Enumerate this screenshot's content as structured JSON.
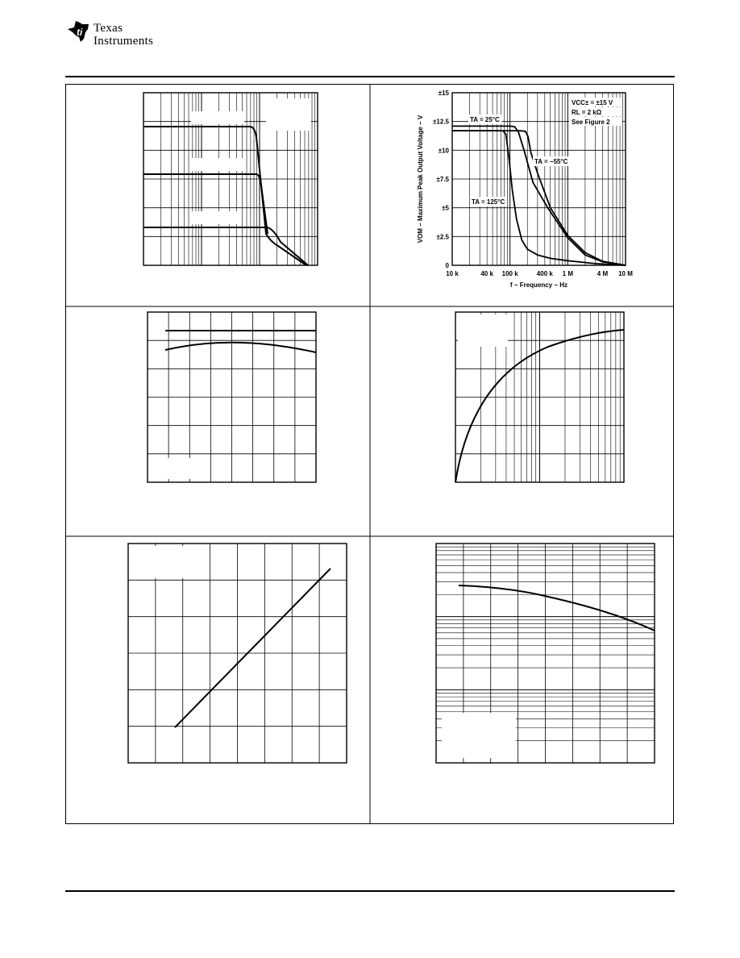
{
  "header": {
    "logo_text_line1": "Texas",
    "logo_text_line2": "Instruments"
  },
  "chart_data": [
    {
      "type": "line",
      "title": "",
      "xlabel": "f − Frequency − Hz",
      "ylabel": "VOM − Maximum Peak Output Voltage − V",
      "xscale": "log",
      "xlim": [
        10000,
        10000000
      ],
      "ylim": [
        0,
        15
      ],
      "grid": true,
      "xtick_labels": [
        "10 k",
        "40 k",
        "100 k",
        "400 k",
        "1 M",
        "4 M",
        "10 M"
      ],
      "xtick_values": [
        10000,
        40000,
        100000,
        400000,
        1000000,
        4000000,
        10000000
      ],
      "ytick_labels": [
        "0",
        "±2.5",
        "±5",
        "±7.5",
        "±10",
        "±12.5",
        "±15"
      ],
      "ytick_values": [
        0,
        2.5,
        5,
        7.5,
        10,
        12.5,
        15
      ],
      "conditions": [
        "VCC± = ±15 V",
        "RL = 2 kΩ",
        "See Figure 2"
      ],
      "series": [
        {
          "name": "TA = 25°C",
          "x": [
            10000,
            100000,
            120000,
            140000,
            175000,
            250000,
            450000,
            1000000,
            2000000,
            4000000,
            10000000
          ],
          "y": [
            12.1,
            12.1,
            12.05,
            11.6,
            10,
            7.2,
            5,
            2.4,
            0.9,
            0.3,
            0
          ]
        },
        {
          "name": "TA = −55°C",
          "x": [
            10000,
            150000,
            185000,
            205000,
            230000,
            300000,
            500000,
            1000000,
            2000000,
            4000000,
            10000000
          ],
          "y": [
            11.7,
            11.7,
            11.65,
            11.2,
            9.8,
            8,
            5,
            2.6,
            1.1,
            0.35,
            0
          ]
        },
        {
          "name": "TA = 125°C",
          "x": [
            10000,
            75000,
            85000,
            95000,
            110000,
            130000,
            160000,
            200000,
            300000,
            500000,
            1000000,
            3000000,
            10000000
          ],
          "y": [
            11.7,
            11.7,
            11.4,
            9.5,
            6.5,
            4,
            2.2,
            1.4,
            0.9,
            0.6,
            0.4,
            0.15,
            0
          ]
        }
      ]
    }
  ]
}
